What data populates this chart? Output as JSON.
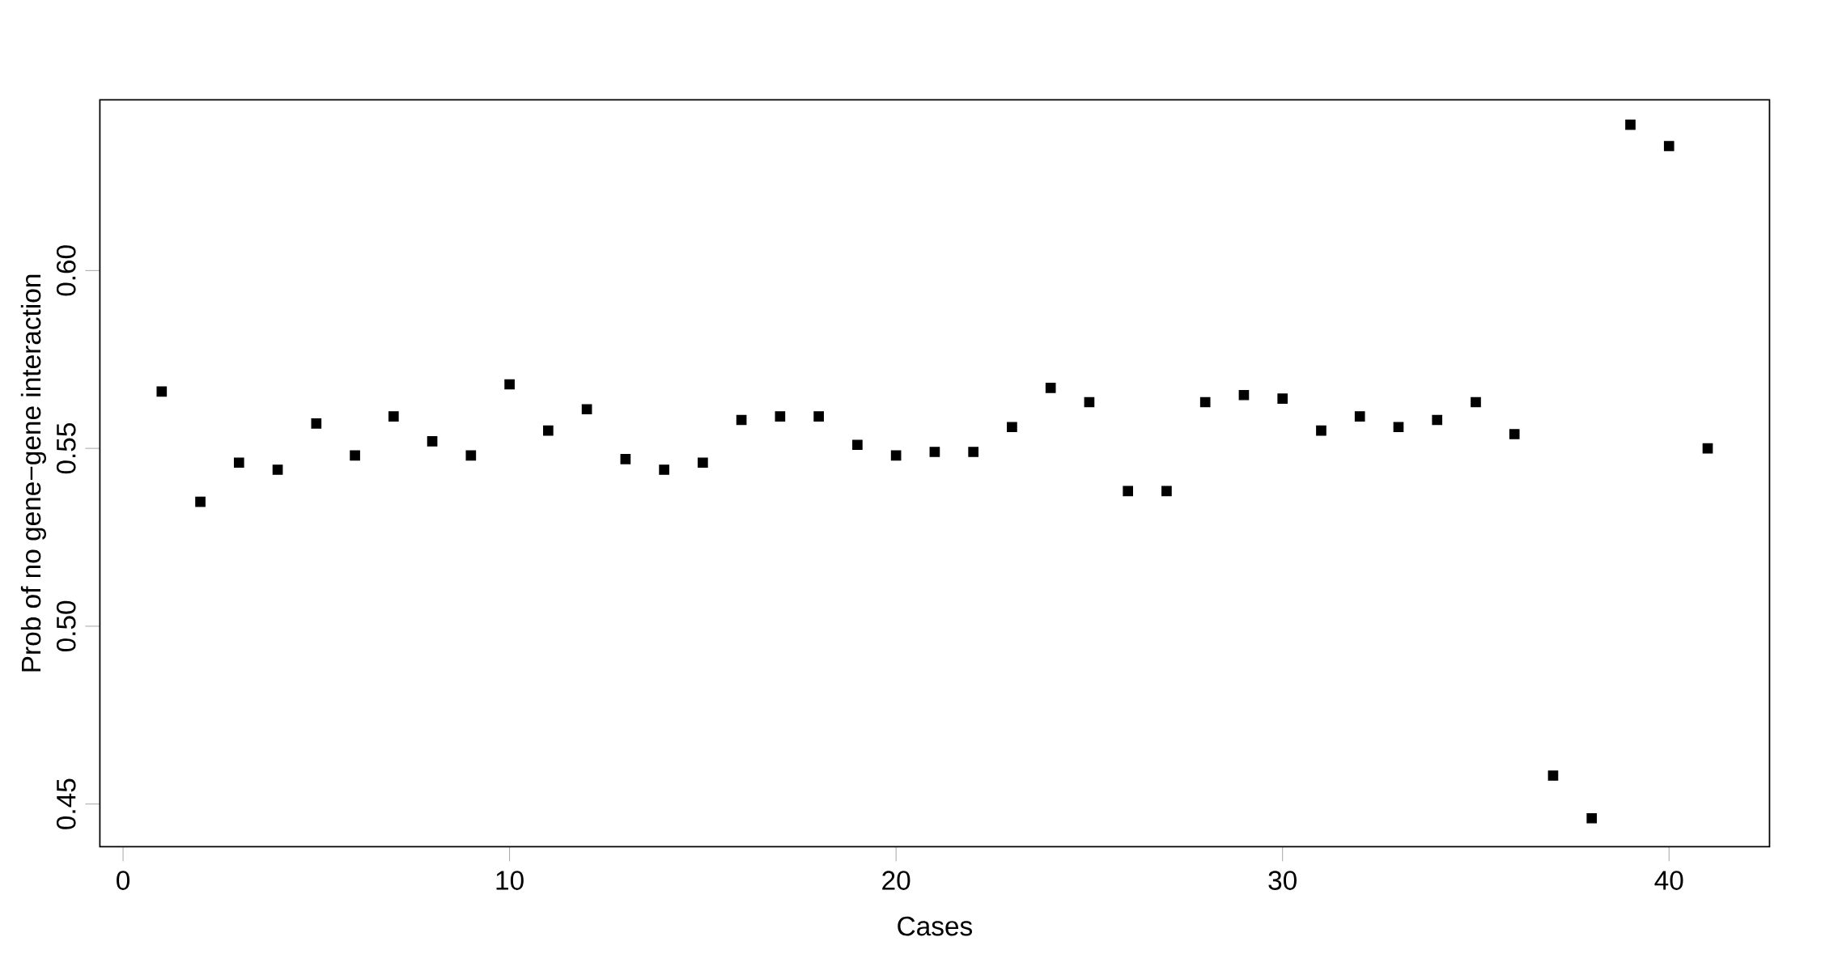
{
  "chart_data": {
    "type": "scatter",
    "xlabel": "Cases",
    "ylabel": "Prob of no gene−gene interaction",
    "x": [
      1,
      2,
      3,
      4,
      5,
      6,
      7,
      8,
      9,
      10,
      11,
      12,
      13,
      14,
      15,
      16,
      17,
      18,
      19,
      20,
      21,
      22,
      23,
      24,
      25,
      26,
      27,
      28,
      29,
      30,
      31,
      32,
      33,
      34,
      35,
      36,
      37,
      38,
      39,
      40,
      41
    ],
    "values": [
      0.566,
      0.535,
      0.546,
      0.544,
      0.557,
      0.548,
      0.559,
      0.552,
      0.548,
      0.568,
      0.555,
      0.561,
      0.547,
      0.544,
      0.546,
      0.558,
      0.559,
      0.559,
      0.551,
      0.548,
      0.549,
      0.549,
      0.556,
      0.567,
      0.563,
      0.538,
      0.538,
      0.563,
      0.565,
      0.564,
      0.555,
      0.559,
      0.556,
      0.558,
      0.563,
      0.554,
      0.458,
      0.446,
      0.641,
      0.635,
      0.55
    ],
    "color": "#000000",
    "marker": "square",
    "grid": false,
    "xlim": [
      -0.6,
      42.6
    ],
    "ylim": [
      0.438,
      0.648
    ],
    "xticks": [
      0,
      10,
      20,
      30,
      40
    ],
    "yticks": [
      0.45,
      {
        "value": 0.5,
        "label": "0.50"
      },
      0.55,
      {
        "value": 0.6,
        "label": "0.60"
      }
    ]
  }
}
